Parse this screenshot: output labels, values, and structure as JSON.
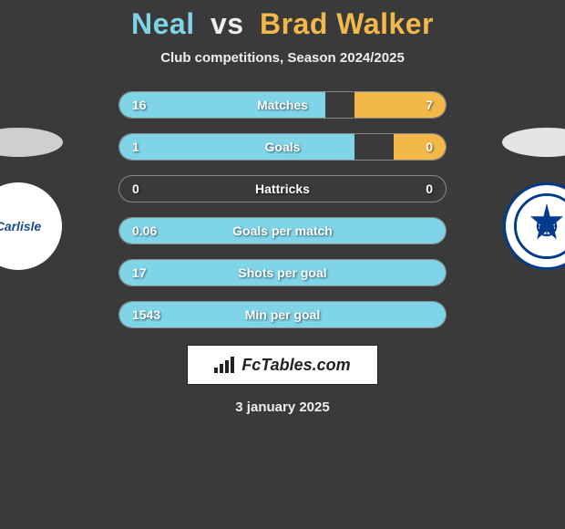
{
  "header": {
    "player1": "Neal",
    "vs": "vs",
    "player2": "Brad Walker",
    "subtitle": "Club competitions, Season 2024/2025"
  },
  "colors": {
    "player1": "#7fd4e8",
    "player2": "#f2b94a",
    "background": "#3a3a3a"
  },
  "crests": {
    "left_label": "Carlisle",
    "right_label": "Tranmere Rovers"
  },
  "stats": [
    {
      "label": "Matches",
      "left_val": "16",
      "right_val": "7",
      "left_pct": 63,
      "right_pct": 28
    },
    {
      "label": "Goals",
      "left_val": "1",
      "right_val": "0",
      "left_pct": 72,
      "right_pct": 16
    },
    {
      "label": "Hattricks",
      "left_val": "0",
      "right_val": "0",
      "left_pct": 0,
      "right_pct": 0
    },
    {
      "label": "Goals per match",
      "left_val": "0.06",
      "right_val": "",
      "left_pct": 100,
      "right_pct": 0
    },
    {
      "label": "Shots per goal",
      "left_val": "17",
      "right_val": "",
      "left_pct": 100,
      "right_pct": 0
    },
    {
      "label": "Min per goal",
      "left_val": "1543",
      "right_val": "",
      "left_pct": 100,
      "right_pct": 0
    }
  ],
  "branding": {
    "label": "FcTables.com"
  },
  "footer": {
    "date": "3 january 2025"
  }
}
